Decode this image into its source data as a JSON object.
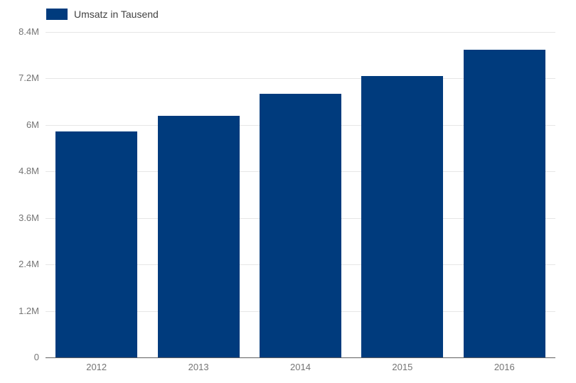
{
  "legend": {
    "label": "Umsatz in Tausend"
  },
  "colors": {
    "bar": "#003b7d",
    "gridline": "#e6e6e6",
    "baseline": "#616161",
    "axis_text": "#757575",
    "legend_text": "#424242",
    "background": "#ffffff"
  },
  "chart_data": {
    "type": "bar",
    "title": "",
    "xlabel": "",
    "ylabel": "",
    "categories": [
      "2012",
      "2013",
      "2014",
      "2015",
      "2016"
    ],
    "series": [
      {
        "name": "Umsatz in Tausend",
        "values": [
          5830000,
          6240000,
          6800000,
          7270000,
          7940000
        ]
      }
    ],
    "ylim": [
      0,
      8400000
    ],
    "y_ticks": [
      {
        "value": 0,
        "label": "0"
      },
      {
        "value": 1200000,
        "label": "1.2M"
      },
      {
        "value": 2400000,
        "label": "2.4M"
      },
      {
        "value": 3600000,
        "label": "3.6M"
      },
      {
        "value": 4800000,
        "label": "4.8M"
      },
      {
        "value": 6000000,
        "label": "6M"
      },
      {
        "value": 7200000,
        "label": "7.2M"
      },
      {
        "value": 8400000,
        "label": "8.4M"
      }
    ],
    "grid": true,
    "legend_position": "top-left"
  }
}
